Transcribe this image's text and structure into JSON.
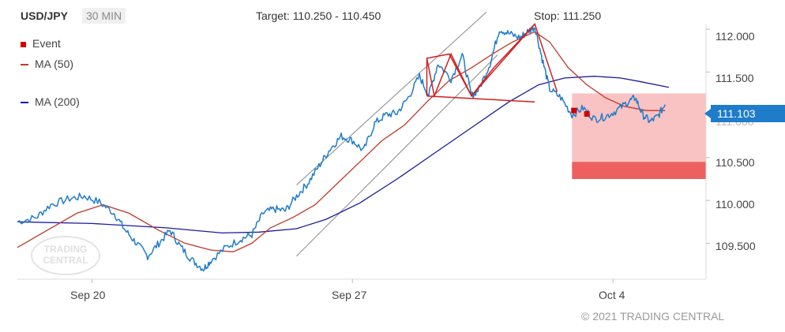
{
  "header": {
    "symbol": "USD/JPY",
    "timeframe": "30 MIN",
    "target": "Target: 110.250 - 110.450",
    "stop": "Stop: 111.250"
  },
  "legend": [
    {
      "label": "Event",
      "color": "#d40000",
      "kind": "square"
    },
    {
      "label": "MA (50)",
      "color": "#c0392b",
      "kind": "line"
    },
    {
      "label": "MA (200)",
      "color": "#1a1aa0",
      "kind": "line"
    }
  ],
  "last_price": "111.103",
  "copyright": "© 2021 TRADING CENTRAL",
  "watermark": {
    "line1": "TRADING",
    "line2": "CENTRAL"
  },
  "colors": {
    "price": "#1f7ccb",
    "ma50": "#c0392b",
    "ma200": "#1a1aa0",
    "pattern": "#d02020",
    "channel": "#999999",
    "target_zone": "#f9c3c3",
    "target_band": "#ee6060",
    "event": "#d40000"
  },
  "chart_data": {
    "type": "line",
    "x_labels": [
      {
        "label": "Sep 20",
        "t": 2.0
      },
      {
        "label": "Sep 27",
        "t": 9.0
      },
      {
        "label": "Oct 4",
        "t": 16.0
      }
    ],
    "y_ticks": [
      "109.500",
      "110.000",
      "110.500",
      "111.000",
      "111.500",
      "112.000"
    ],
    "y_tick_values": [
      109.5,
      110.0,
      110.5,
      111.0,
      111.5,
      112.0
    ],
    "x_range": [
      0.0,
      18.5
    ],
    "ylim": [
      109.08,
      112.12
    ],
    "grid": false,
    "legend_position": "top-left",
    "series": [
      {
        "name": "USD/JPY",
        "points": [
          [
            0.0,
            109.75
          ],
          [
            0.5,
            109.8
          ],
          [
            0.9,
            109.95
          ],
          [
            1.4,
            110.02
          ],
          [
            1.8,
            110.05
          ],
          [
            2.2,
            109.98
          ],
          [
            2.6,
            109.85
          ],
          [
            2.9,
            109.65
          ],
          [
            3.2,
            109.5
          ],
          [
            3.5,
            109.35
          ],
          [
            3.8,
            109.5
          ],
          [
            4.1,
            109.65
          ],
          [
            4.4,
            109.45
          ],
          [
            4.7,
            109.3
          ],
          [
            5.0,
            109.2
          ],
          [
            5.2,
            109.3
          ],
          [
            5.6,
            109.45
          ],
          [
            6.0,
            109.55
          ],
          [
            6.3,
            109.6
          ],
          [
            6.6,
            109.85
          ],
          [
            6.9,
            109.9
          ],
          [
            7.2,
            109.88
          ],
          [
            7.5,
            110.05
          ],
          [
            7.8,
            110.2
          ],
          [
            8.1,
            110.4
          ],
          [
            8.4,
            110.6
          ],
          [
            8.7,
            110.75
          ],
          [
            9.0,
            110.7
          ],
          [
            9.3,
            110.58
          ],
          [
            9.6,
            110.9
          ],
          [
            9.9,
            111.0
          ],
          [
            10.2,
            111.02
          ],
          [
            10.5,
            111.2
          ],
          [
            10.8,
            111.45
          ],
          [
            11.05,
            111.23
          ],
          [
            11.3,
            111.6
          ],
          [
            11.65,
            111.42
          ],
          [
            11.95,
            111.7
          ],
          [
            12.2,
            111.22
          ],
          [
            12.4,
            111.3
          ],
          [
            12.7,
            111.6
          ],
          [
            12.95,
            112.0
          ],
          [
            13.2,
            111.95
          ],
          [
            13.5,
            111.9
          ],
          [
            13.7,
            111.97
          ],
          [
            13.9,
            112.03
          ],
          [
            14.1,
            111.65
          ],
          [
            14.3,
            111.3
          ],
          [
            14.6,
            111.2
          ],
          [
            14.9,
            111.0
          ],
          [
            15.2,
            111.08
          ],
          [
            15.5,
            110.95
          ],
          [
            15.8,
            110.98
          ],
          [
            16.1,
            111.05
          ],
          [
            16.4,
            111.15
          ],
          [
            16.6,
            111.2
          ],
          [
            16.8,
            111.0
          ],
          [
            17.0,
            110.92
          ],
          [
            17.2,
            110.98
          ],
          [
            17.4,
            111.12
          ]
        ]
      },
      {
        "name": "MA (50)",
        "points": [
          [
            0.0,
            109.45
          ],
          [
            0.8,
            109.65
          ],
          [
            1.6,
            109.85
          ],
          [
            2.3,
            109.95
          ],
          [
            3.0,
            109.85
          ],
          [
            3.8,
            109.65
          ],
          [
            4.5,
            109.5
          ],
          [
            5.2,
            109.42
          ],
          [
            5.8,
            109.4
          ],
          [
            6.3,
            109.5
          ],
          [
            6.8,
            109.68
          ],
          [
            7.4,
            109.8
          ],
          [
            8.0,
            109.95
          ],
          [
            8.6,
            110.2
          ],
          [
            9.2,
            110.45
          ],
          [
            9.8,
            110.7
          ],
          [
            10.4,
            110.88
          ],
          [
            11.0,
            111.15
          ],
          [
            11.6,
            111.4
          ],
          [
            12.2,
            111.55
          ],
          [
            12.8,
            111.72
          ],
          [
            13.3,
            111.85
          ],
          [
            13.9,
            111.97
          ],
          [
            14.3,
            111.85
          ],
          [
            14.8,
            111.55
          ],
          [
            15.3,
            111.35
          ],
          [
            15.8,
            111.2
          ],
          [
            16.3,
            111.1
          ],
          [
            16.9,
            111.05
          ],
          [
            17.4,
            111.05
          ]
        ]
      },
      {
        "name": "MA (200)",
        "points": [
          [
            0.0,
            109.75
          ],
          [
            2.0,
            109.73
          ],
          [
            4.0,
            109.68
          ],
          [
            5.5,
            109.62
          ],
          [
            6.5,
            109.63
          ],
          [
            7.5,
            109.67
          ],
          [
            8.3,
            109.78
          ],
          [
            9.2,
            109.97
          ],
          [
            10.2,
            110.25
          ],
          [
            11.2,
            110.55
          ],
          [
            12.2,
            110.85
          ],
          [
            13.2,
            111.15
          ],
          [
            14.0,
            111.35
          ],
          [
            14.7,
            111.43
          ],
          [
            15.5,
            111.45
          ],
          [
            16.2,
            111.43
          ],
          [
            16.7,
            111.39
          ],
          [
            17.5,
            111.32
          ]
        ]
      }
    ],
    "channel": [
      {
        "from": [
          7.5,
          110.18
        ],
        "to": [
          12.6,
          112.2
        ]
      },
      {
        "from": [
          7.5,
          109.35
        ],
        "to": [
          12.9,
          111.7
        ]
      }
    ],
    "pattern": {
      "outline": [
        [
          11.0,
          111.22
        ],
        [
          11.0,
          111.66
        ],
        [
          11.6,
          111.71
        ],
        [
          12.2,
          111.22
        ],
        [
          13.9,
          112.06
        ],
        [
          14.5,
          111.27
        ]
      ],
      "zigzag": [
        [
          11.0,
          111.66
        ],
        [
          11.2,
          111.22
        ],
        [
          11.65,
          111.71
        ],
        [
          12.2,
          111.22
        ],
        [
          12.8,
          111.55
        ],
        [
          13.9,
          112.06
        ]
      ],
      "neckline": {
        "from": [
          11.0,
          111.22
        ],
        "to": [
          13.9,
          111.15
        ]
      }
    },
    "target_zone": {
      "from_t": 14.9,
      "to_t": 18.5,
      "low": 110.25,
      "high": 111.25
    },
    "target_band": {
      "low": 110.25,
      "high": 110.45
    },
    "events": [
      [
        14.95,
        111.05
      ],
      [
        15.3,
        111.01
      ]
    ]
  }
}
